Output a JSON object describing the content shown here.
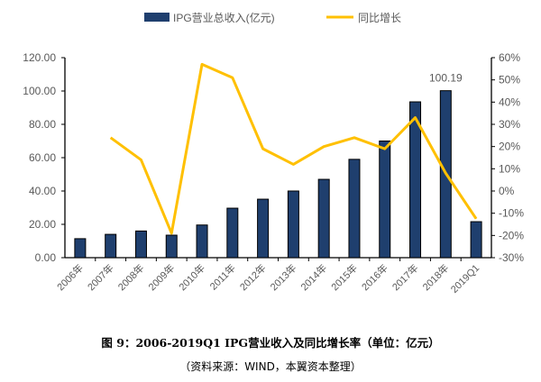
{
  "chart_data": {
    "type": "bar+line",
    "categories": [
      "2006年",
      "2007年",
      "2008年",
      "2009年",
      "2010年",
      "2011年",
      "2012年",
      "2013年",
      "2014年",
      "2015年",
      "2016年",
      "2017年",
      "2018年",
      "2019Q1"
    ],
    "series": [
      {
        "name": "IPG营业总收入(亿元)",
        "type": "bar",
        "axis": "left",
        "color": "#1F3F6E",
        "values": [
          11.4,
          14.0,
          16.0,
          13.5,
          19.6,
          29.7,
          35.1,
          40.0,
          47.0,
          59.0,
          70.0,
          93.5,
          100.19,
          21.6
        ]
      },
      {
        "name": "同比增长",
        "type": "line",
        "axis": "right",
        "color": "#FFC000",
        "values": [
          null,
          24,
          14,
          -19,
          57,
          51,
          19,
          12,
          20,
          24,
          19,
          33,
          8,
          -12.5
        ]
      }
    ],
    "data_labels": [
      {
        "category": "2018年",
        "text": "100.19"
      }
    ],
    "left_axis": {
      "ylim": [
        0,
        120
      ],
      "ticks": [
        "0.00",
        "20.00",
        "40.00",
        "60.00",
        "80.00",
        "100.00",
        "120.00"
      ]
    },
    "right_axis": {
      "ylim": [
        -30,
        60
      ],
      "ticks": [
        "-30%",
        "-20%",
        "-10%",
        "0%",
        "10%",
        "20%",
        "30%",
        "40%",
        "50%",
        "60%"
      ]
    },
    "legend": "top",
    "grid": false
  },
  "caption": "图 9：2006-2019Q1 IPG营业收入及同比增长率（单位：亿元）",
  "source": "（资料来源：WIND，本翼资本整理）"
}
